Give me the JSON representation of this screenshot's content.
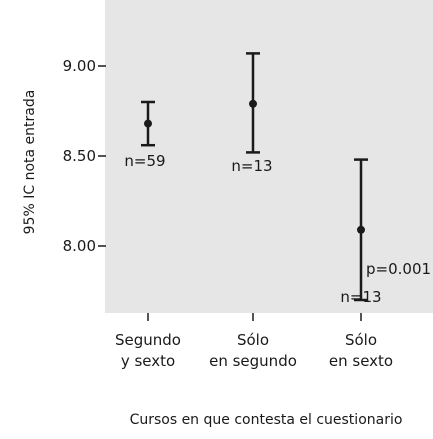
{
  "chart_data": {
    "type": "errorbar",
    "title": "",
    "xlabel": "Cursos en que contesta el cuestionario",
    "ylabel": "95% IC nota entrada",
    "ylim": [
      7.65,
      9.18
    ],
    "yticks": [
      "8.00",
      "8.50",
      "9.00"
    ],
    "ytick_values": [
      8.0,
      8.5,
      9.0
    ],
    "grid": false,
    "categories": [
      [
        "Segundo",
        "y sexto"
      ],
      [
        "Sólo",
        "en segundo"
      ],
      [
        "Sólo",
        "en sexto"
      ]
    ],
    "series": [
      {
        "mean": [
          8.68,
          8.79,
          8.09
        ],
        "lower": [
          8.56,
          8.52,
          7.7
        ],
        "upper": [
          8.8,
          9.07,
          8.48
        ]
      }
    ],
    "annotations": [
      {
        "category_index": 0,
        "text": "n=59"
      },
      {
        "category_index": 1,
        "text": "n=13"
      },
      {
        "category_index": 2,
        "text": "n=13"
      },
      {
        "category_index": 2,
        "text": "p=0.001"
      }
    ]
  }
}
